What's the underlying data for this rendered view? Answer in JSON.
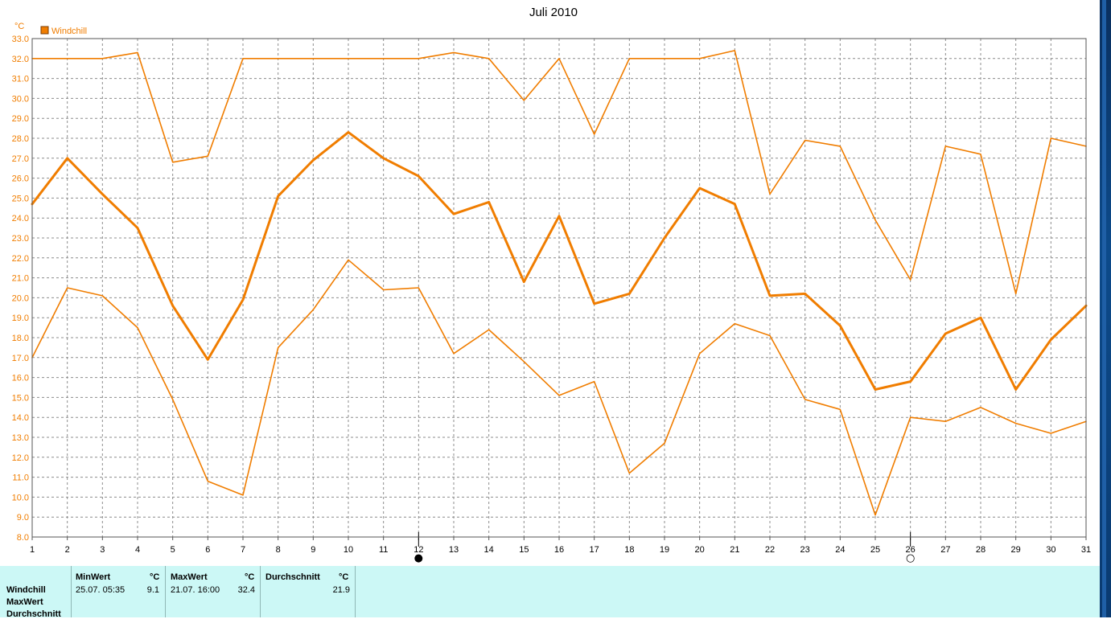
{
  "chart_data": {
    "type": "line",
    "title": "Juli 2010",
    "ylabel": "°C",
    "legend": {
      "label": "Windchill",
      "color": "#f07d00",
      "placement": "top-left"
    },
    "ylim": [
      8.0,
      33.0
    ],
    "ystep": 1.0,
    "grid": true,
    "x": [
      1,
      2,
      3,
      4,
      5,
      6,
      7,
      8,
      9,
      10,
      11,
      12,
      13,
      14,
      15,
      16,
      17,
      18,
      19,
      20,
      21,
      22,
      23,
      24,
      25,
      26,
      27,
      28,
      29,
      30,
      31
    ],
    "series": [
      {
        "role": "max",
        "values": [
          32.0,
          32.0,
          32.0,
          32.3,
          26.8,
          27.1,
          32.0,
          32.0,
          32.0,
          32.0,
          32.0,
          32.0,
          32.3,
          32.0,
          29.9,
          32.0,
          28.2,
          32.0,
          32.0,
          32.0,
          32.4,
          25.2,
          27.9,
          27.6,
          23.9,
          20.9,
          27.6,
          27.2,
          20.2,
          28.0,
          27.6
        ]
      },
      {
        "role": "avg",
        "values": [
          24.7,
          27.0,
          25.2,
          23.5,
          19.6,
          16.9,
          19.9,
          25.1,
          26.9,
          28.3,
          27.0,
          26.1,
          24.2,
          24.8,
          20.8,
          24.1,
          19.7,
          20.2,
          23.0,
          25.5,
          24.7,
          20.1,
          20.2,
          18.6,
          15.4,
          15.8,
          18.2,
          19.0,
          15.4,
          17.9,
          19.6
        ]
      },
      {
        "role": "min",
        "values": [
          17.0,
          20.5,
          20.1,
          18.5,
          14.9,
          10.8,
          10.1,
          17.5,
          19.4,
          21.9,
          20.4,
          20.5,
          17.2,
          18.4,
          16.8,
          15.1,
          15.8,
          11.2,
          12.7,
          17.2,
          18.7,
          18.1,
          14.9,
          14.4,
          9.1,
          14.0,
          13.8,
          14.5,
          13.7,
          13.2,
          13.8
        ]
      }
    ],
    "markers": [
      {
        "day": 12,
        "symbol": "●",
        "label": "full-moon"
      },
      {
        "day": 26,
        "symbol": "○",
        "label": "new-moon"
      }
    ]
  },
  "stats": {
    "row_labels": [
      "Windchill",
      "MaxWert",
      "Durchschnitt"
    ],
    "min": {
      "header": "MinWert",
      "unit": "°C",
      "date": "25.07.  05:35",
      "value": "9.1"
    },
    "max": {
      "header": "MaxWert",
      "unit": "°C",
      "date": "21.07.  16:00",
      "value": "32.4"
    },
    "avg": {
      "header": "Durchschnitt",
      "unit": "°C",
      "value": "21.9"
    }
  },
  "colors": {
    "line": "#f07d00",
    "axis_text": "#f07d00",
    "grid": "#8c8c8c",
    "panel_bg": "#ccf8f6"
  }
}
